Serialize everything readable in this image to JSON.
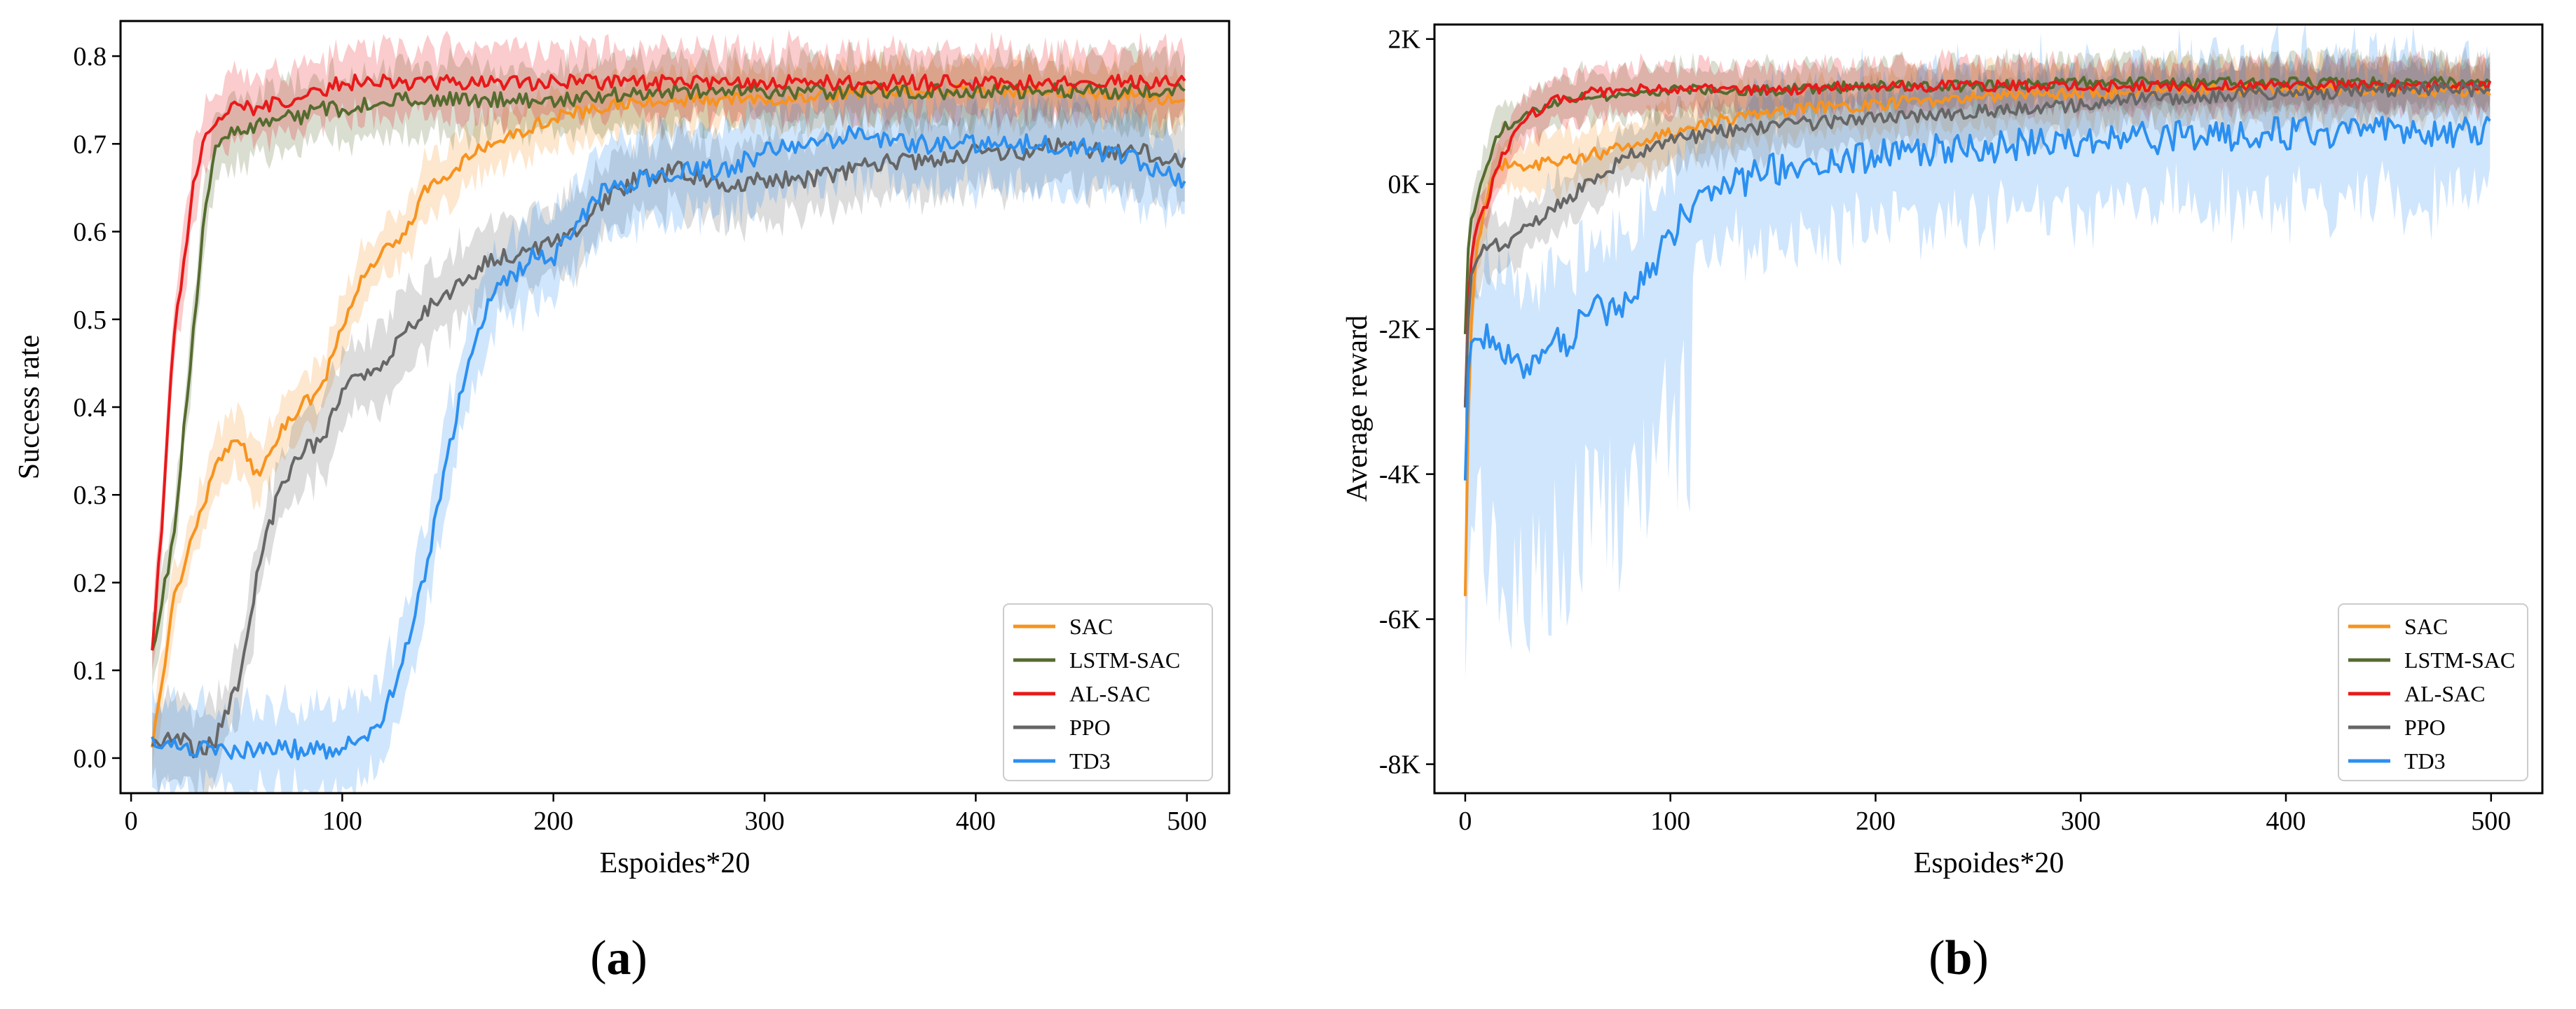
{
  "figure": {
    "panels": [
      {
        "label_open": "(",
        "label_letter": "a",
        "label_close": ")"
      },
      {
        "label_open": "(",
        "label_letter": "b",
        "label_close": ")"
      }
    ]
  },
  "chart_data": [
    {
      "type": "line",
      "title": "",
      "xlabel": "Espoides*20",
      "ylabel": "Success rate",
      "xlim": [
        -5,
        520
      ],
      "ylim": [
        -0.04,
        0.84
      ],
      "xticks": [
        0,
        100,
        200,
        300,
        400,
        500
      ],
      "xtick_labels": [
        "0",
        "100",
        "200",
        "300",
        "400",
        "500"
      ],
      "yticks": [
        0.0,
        0.1,
        0.2,
        0.3,
        0.4,
        0.5,
        0.6,
        0.7,
        0.8
      ],
      "ytick_labels": [
        "0.0",
        "0.1",
        "0.2",
        "0.3",
        "0.4",
        "0.5",
        "0.6",
        "0.7",
        "0.8"
      ],
      "legend_position": "lower-right",
      "grid": false,
      "series": [
        {
          "name": "SAC",
          "color": "#f7931e",
          "x": [
            10,
            20,
            30,
            40,
            50,
            60,
            70,
            80,
            90,
            100,
            110,
            120,
            130,
            140,
            150,
            160,
            170,
            180,
            190,
            200,
            220,
            250,
            300,
            350,
            400,
            450,
            500
          ],
          "values": [
            0.01,
            0.18,
            0.26,
            0.33,
            0.37,
            0.32,
            0.37,
            0.4,
            0.42,
            0.49,
            0.55,
            0.58,
            0.6,
            0.65,
            0.66,
            0.69,
            0.7,
            0.71,
            0.72,
            0.73,
            0.74,
            0.75,
            0.75,
            0.76,
            0.76,
            0.76,
            0.75
          ]
        },
        {
          "name": "LSTM-SAC",
          "color": "#556b2f",
          "x": [
            10,
            20,
            30,
            35,
            40,
            45,
            50,
            60,
            70,
            80,
            90,
            100,
            120,
            140,
            160,
            200,
            250,
            300,
            350,
            400,
            450,
            500
          ],
          "values": [
            0.12,
            0.25,
            0.5,
            0.62,
            0.69,
            0.71,
            0.72,
            0.72,
            0.73,
            0.73,
            0.74,
            0.74,
            0.75,
            0.75,
            0.75,
            0.75,
            0.76,
            0.76,
            0.76,
            0.76,
            0.76,
            0.76
          ]
        },
        {
          "name": "AL-SAC",
          "color": "#e8191a",
          "x": [
            10,
            15,
            20,
            25,
            30,
            35,
            40,
            45,
            50,
            60,
            70,
            80,
            90,
            100,
            120,
            150,
            200,
            250,
            300,
            350,
            400,
            450,
            500
          ],
          "values": [
            0.12,
            0.28,
            0.47,
            0.57,
            0.66,
            0.71,
            0.73,
            0.74,
            0.74,
            0.74,
            0.75,
            0.75,
            0.76,
            0.77,
            0.77,
            0.77,
            0.77,
            0.77,
            0.77,
            0.77,
            0.77,
            0.77,
            0.77
          ]
        },
        {
          "name": "PPO",
          "color": "#666666",
          "x": [
            10,
            20,
            25,
            30,
            35,
            40,
            50,
            55,
            60,
            70,
            80,
            90,
            100,
            110,
            120,
            130,
            140,
            150,
            160,
            170,
            180,
            190,
            200,
            210,
            220,
            240,
            260,
            280,
            300,
            320,
            340,
            360,
            380,
            400,
            420,
            440,
            460,
            480,
            500
          ],
          "values": [
            0.01,
            0.03,
            0.02,
            0.01,
            0.01,
            0.02,
            0.08,
            0.13,
            0.22,
            0.3,
            0.35,
            0.36,
            0.42,
            0.44,
            0.45,
            0.49,
            0.51,
            0.53,
            0.55,
            0.57,
            0.57,
            0.58,
            0.59,
            0.6,
            0.63,
            0.66,
            0.67,
            0.65,
            0.66,
            0.66,
            0.67,
            0.68,
            0.68,
            0.69,
            0.69,
            0.7,
            0.69,
            0.69,
            0.68
          ]
        },
        {
          "name": "TD3",
          "color": "#2b8ff0",
          "x": [
            10,
            20,
            30,
            40,
            50,
            60,
            70,
            80,
            90,
            100,
            110,
            120,
            130,
            140,
            150,
            160,
            170,
            180,
            190,
            200,
            210,
            220,
            240,
            260,
            280,
            300,
            320,
            340,
            360,
            380,
            400,
            420,
            440,
            460,
            480,
            500
          ],
          "values": [
            0.02,
            0.02,
            0.01,
            0.01,
            0.01,
            0.01,
            0.01,
            0.01,
            0.01,
            0.01,
            0.02,
            0.05,
            0.12,
            0.22,
            0.35,
            0.45,
            0.52,
            0.55,
            0.57,
            0.57,
            0.6,
            0.64,
            0.66,
            0.67,
            0.67,
            0.69,
            0.7,
            0.71,
            0.7,
            0.7,
            0.7,
            0.7,
            0.7,
            0.69,
            0.68,
            0.65
          ]
        }
      ]
    },
    {
      "type": "line",
      "title": "",
      "xlabel": "Espoides*20",
      "ylabel": "Average reward",
      "xlim": [
        -15,
        525
      ],
      "ylim": [
        -8400,
        2200
      ],
      "xticks": [
        0,
        100,
        200,
        300,
        400,
        500
      ],
      "xtick_labels": [
        "0",
        "100",
        "200",
        "300",
        "400",
        "500"
      ],
      "yticks": [
        -8000,
        -6000,
        -4000,
        -2000,
        0,
        2000
      ],
      "ytick_labels": [
        "-8K",
        "-6K",
        "-4K",
        "-2K",
        "0K",
        "2K"
      ],
      "legend_position": "lower-right",
      "grid": false,
      "series": [
        {
          "name": "SAC",
          "color": "#f7931e",
          "x": [
            0,
            2,
            5,
            10,
            15,
            20,
            30,
            40,
            50,
            60,
            70,
            80,
            100,
            120,
            150,
            200,
            250,
            300,
            350,
            400,
            450,
            500
          ],
          "values": [
            -5600,
            -2500,
            -1000,
            -200,
            200,
            300,
            250,
            300,
            350,
            400,
            450,
            550,
            700,
            850,
            1000,
            1100,
            1200,
            1250,
            1300,
            1300,
            1300,
            1300
          ]
        },
        {
          "name": "LSTM-SAC",
          "color": "#556b2f",
          "x": [
            0,
            2,
            5,
            10,
            15,
            20,
            30,
            40,
            50,
            60,
            80,
            100,
            150,
            200,
            250,
            300,
            350,
            400,
            450,
            500
          ],
          "values": [
            -2000,
            -600,
            -300,
            200,
            600,
            800,
            1000,
            1100,
            1200,
            1200,
            1250,
            1300,
            1300,
            1350,
            1350,
            1400,
            1400,
            1400,
            1400,
            1400
          ]
        },
        {
          "name": "AL-SAC",
          "color": "#e8191a",
          "x": [
            0,
            2,
            5,
            10,
            15,
            20,
            30,
            40,
            50,
            60,
            80,
            100,
            150,
            200,
            250,
            300,
            350,
            400,
            450,
            500
          ],
          "values": [
            -3000,
            -1200,
            -600,
            -300,
            200,
            500,
            900,
            1100,
            1200,
            1250,
            1300,
            1300,
            1300,
            1350,
            1350,
            1350,
            1350,
            1350,
            1350,
            1350
          ]
        },
        {
          "name": "PPO",
          "color": "#666666",
          "x": [
            0,
            2,
            5,
            10,
            20,
            30,
            40,
            50,
            60,
            70,
            80,
            100,
            120,
            150,
            200,
            250,
            300,
            350,
            400,
            450,
            500
          ],
          "values": [
            -3000,
            -1500,
            -1000,
            -900,
            -800,
            -600,
            -400,
            -200,
            0,
            200,
            400,
            600,
            700,
            800,
            900,
            1000,
            1100,
            1200,
            1250,
            1300,
            1300
          ]
        },
        {
          "name": "TD3",
          "color": "#2b8ff0",
          "x": [
            0,
            2,
            5,
            10,
            15,
            20,
            25,
            30,
            40,
            50,
            60,
            70,
            80,
            90,
            100,
            110,
            120,
            150,
            200,
            250,
            300,
            350,
            400,
            450,
            500
          ],
          "values": [
            -3900,
            -2400,
            -1900,
            -2100,
            -2300,
            -2500,
            -2200,
            -2600,
            -2100,
            -2200,
            -1600,
            -1800,
            -1500,
            -1200,
            -700,
            -300,
            -100,
            200,
            400,
            500,
            600,
            650,
            700,
            700,
            700
          ]
        }
      ]
    }
  ]
}
